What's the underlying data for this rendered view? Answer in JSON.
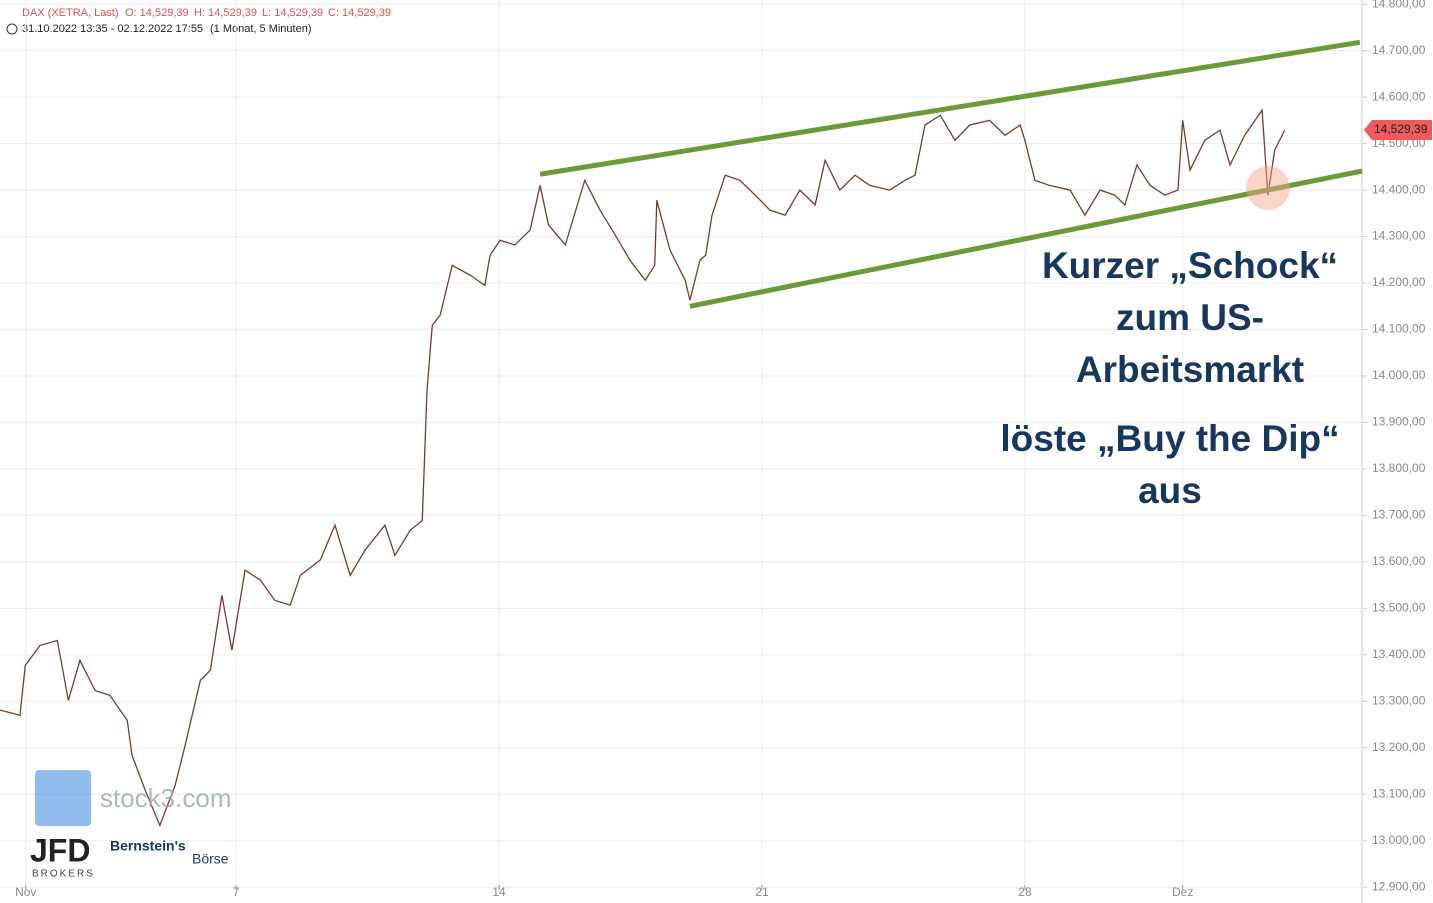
{
  "chart_data": {
    "type": "line",
    "header": {
      "instrument": "DAX (XETRA, Last)",
      "ohlc": [
        "O: 14,529,39",
        "H: 14,529,39",
        "L: 14,529,39",
        "C: 14,529,39"
      ],
      "period": "31.10.2022 13:35 - 02.12.2022 17:55",
      "interval": "(1 Monat, 5 Minuten)"
    },
    "x": [
      -0.49,
      -0.11,
      -0.01,
      0.27,
      0.6,
      0.81,
      1.03,
      1.32,
      1.6,
      1.93,
      2.02,
      2.27,
      2.55,
      2.84,
      3.03,
      3.32,
      3.51,
      3.73,
      3.92,
      4.17,
      4.46,
      4.74,
      5.03,
      5.22,
      5.6,
      5.88,
      6.17,
      6.45,
      6.83,
      7.02,
      7.31,
      7.54,
      7.63,
      7.73,
      7.88,
      8.11,
      8.45,
      8.73,
      8.83,
      9.02,
      9.3,
      9.59,
      9.78,
      9.94,
      10.26,
      10.63,
      10.92,
      11.21,
      11.49,
      11.78,
      11.96,
      12.0,
      12.25,
      12.54,
      12.63,
      12.82,
      12.93,
      13.05,
      13.3,
      13.58,
      13.87,
      14.15,
      14.44,
      14.72,
      15.01,
      15.2,
      15.48,
      15.77,
      16.05,
      16.43,
      16.72,
      16.91,
      17.1,
      17.39,
      17.67,
      17.95,
      18.33,
      18.62,
      18.91,
      19.0,
      19.19,
      19.47,
      19.86,
      20.14,
      20.43,
      20.71,
      20.9,
      21.13,
      21.38,
      21.66,
      21.91,
      22.0,
      22.14,
      22.42,
      22.71,
      22.9,
      23.18,
      23.51,
      23.62,
      23.75,
      23.94
    ],
    "series": [
      {
        "color": "#7a3a2e",
        "values": [
          13281,
          13270,
          13377,
          13420,
          13431,
          13302,
          13388,
          13323,
          13313,
          13259,
          13184,
          13109,
          13033,
          13119,
          13205,
          13345,
          13367,
          13528,
          13410,
          13582,
          13561,
          13517,
          13507,
          13571,
          13604,
          13679,
          13571,
          13625,
          13679,
          13614,
          13668,
          13689,
          13969,
          14109,
          14131,
          14238,
          14217,
          14195,
          14260,
          14292,
          14282,
          14314,
          14410,
          14325,
          14282,
          14421,
          14357,
          14303,
          14249,
          14206,
          14238,
          14378,
          14271,
          14206,
          14163,
          14249,
          14260,
          14346,
          14432,
          14421,
          14389,
          14357,
          14346,
          14400,
          14368,
          14464,
          14400,
          14432,
          14410,
          14400,
          14421,
          14432,
          14540,
          14561,
          14507,
          14540,
          14550,
          14518,
          14540,
          14507,
          14421,
          14410,
          14400,
          14346,
          14400,
          14389,
          14368,
          14454,
          14410,
          14389,
          14400,
          14550,
          14443,
          14507,
          14529,
          14454,
          14518,
          14572,
          14389,
          14486,
          14529
        ]
      }
    ],
    "trendlines": [
      {
        "color": "#6b9a3a",
        "x": [
          9.78,
          25.37
        ],
        "values": [
          14434,
          14718
        ]
      },
      {
        "color": "#6b9a3a",
        "x": [
          12.63,
          25.41
        ],
        "values": [
          14150,
          14441
        ]
      }
    ],
    "last_price": {
      "value": 14529.39,
      "label": "14,529,39"
    },
    "xlim": [
      -0.49,
      25.41
    ],
    "xticks": [
      {
        "value": 0,
        "label": "Nov"
      },
      {
        "value": 4,
        "label": "7"
      },
      {
        "value": 9,
        "label": "14"
      },
      {
        "value": 14,
        "label": "21"
      },
      {
        "value": 19,
        "label": "28"
      },
      {
        "value": 22,
        "label": "Dez"
      }
    ],
    "ylim": [
      12866,
      14809
    ],
    "yticks": [
      {
        "value": 12900,
        "label": "12.900,00"
      },
      {
        "value": 13000,
        "label": "13.000,00"
      },
      {
        "value": 13100,
        "label": "13.100,00"
      },
      {
        "value": 13200,
        "label": "13.200,00"
      },
      {
        "value": 13300,
        "label": "13.300,00"
      },
      {
        "value": 13400,
        "label": "13.400,00"
      },
      {
        "value": 13500,
        "label": "13.500,00"
      },
      {
        "value": 13600,
        "label": "13.600,00"
      },
      {
        "value": 13700,
        "label": "13.700,00"
      },
      {
        "value": 13800,
        "label": "13.800,00"
      },
      {
        "value": 13900,
        "label": "13.900,00"
      },
      {
        "value": 14000,
        "label": "14.000,00"
      },
      {
        "value": 14100,
        "label": "14.100,00"
      },
      {
        "value": 14200,
        "label": "14.200,00"
      },
      {
        "value": 14300,
        "label": "14.300,00"
      },
      {
        "value": 14400,
        "label": "14.400,00"
      },
      {
        "value": 14500,
        "label": "14.500,00"
      },
      {
        "value": 14600,
        "label": "14.600,00"
      },
      {
        "value": 14700,
        "label": "14.700,00"
      },
      {
        "value": 14800,
        "label": "14.800,00"
      }
    ],
    "grid": true,
    "annotations": [
      "Kurzer „Schock“",
      "zum US-",
      "Arbeitsmarkt",
      "löste „Buy the Dip“",
      "aus"
    ],
    "logos": {
      "stock3": "stock3.com",
      "jfd": "JFD",
      "jfd_sub": "BROKERS",
      "bernstein": "Bernstein's",
      "boerse": "Börse"
    }
  }
}
